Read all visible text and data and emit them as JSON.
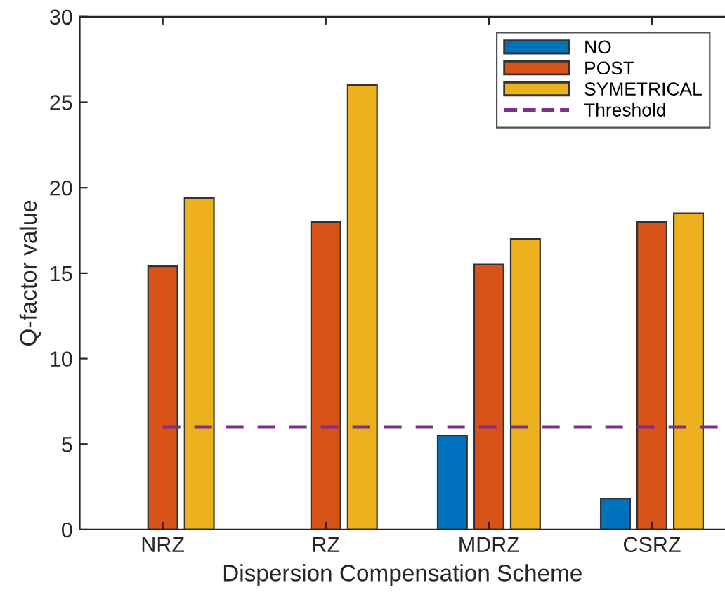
{
  "chart_data": {
    "type": "bar",
    "xlabel": "Dispersion Compensation Scheme",
    "ylabel": "Q-factor value",
    "categories": [
      "NRZ",
      "RZ",
      "MDRZ",
      "CSRZ"
    ],
    "series": [
      {
        "name": "NO",
        "color": "#0072bd",
        "values": [
          null,
          null,
          5.5,
          1.8
        ]
      },
      {
        "name": "POST",
        "color": "#d95319",
        "values": [
          15.4,
          18.0,
          15.5,
          18.0
        ]
      },
      {
        "name": "SYMETRICAL",
        "color": "#edb120",
        "values": [
          19.4,
          26.0,
          17.0,
          18.5
        ]
      }
    ],
    "ref_lines": [
      {
        "axis": "y",
        "value": 6,
        "label": "Threshold",
        "color": "#7e2f8e",
        "line_style": "dashed"
      }
    ],
    "ylim": [
      0,
      30
    ],
    "yticks": [
      0,
      5,
      10,
      15,
      20,
      25,
      30
    ],
    "grid": false,
    "legend": "top right"
  }
}
